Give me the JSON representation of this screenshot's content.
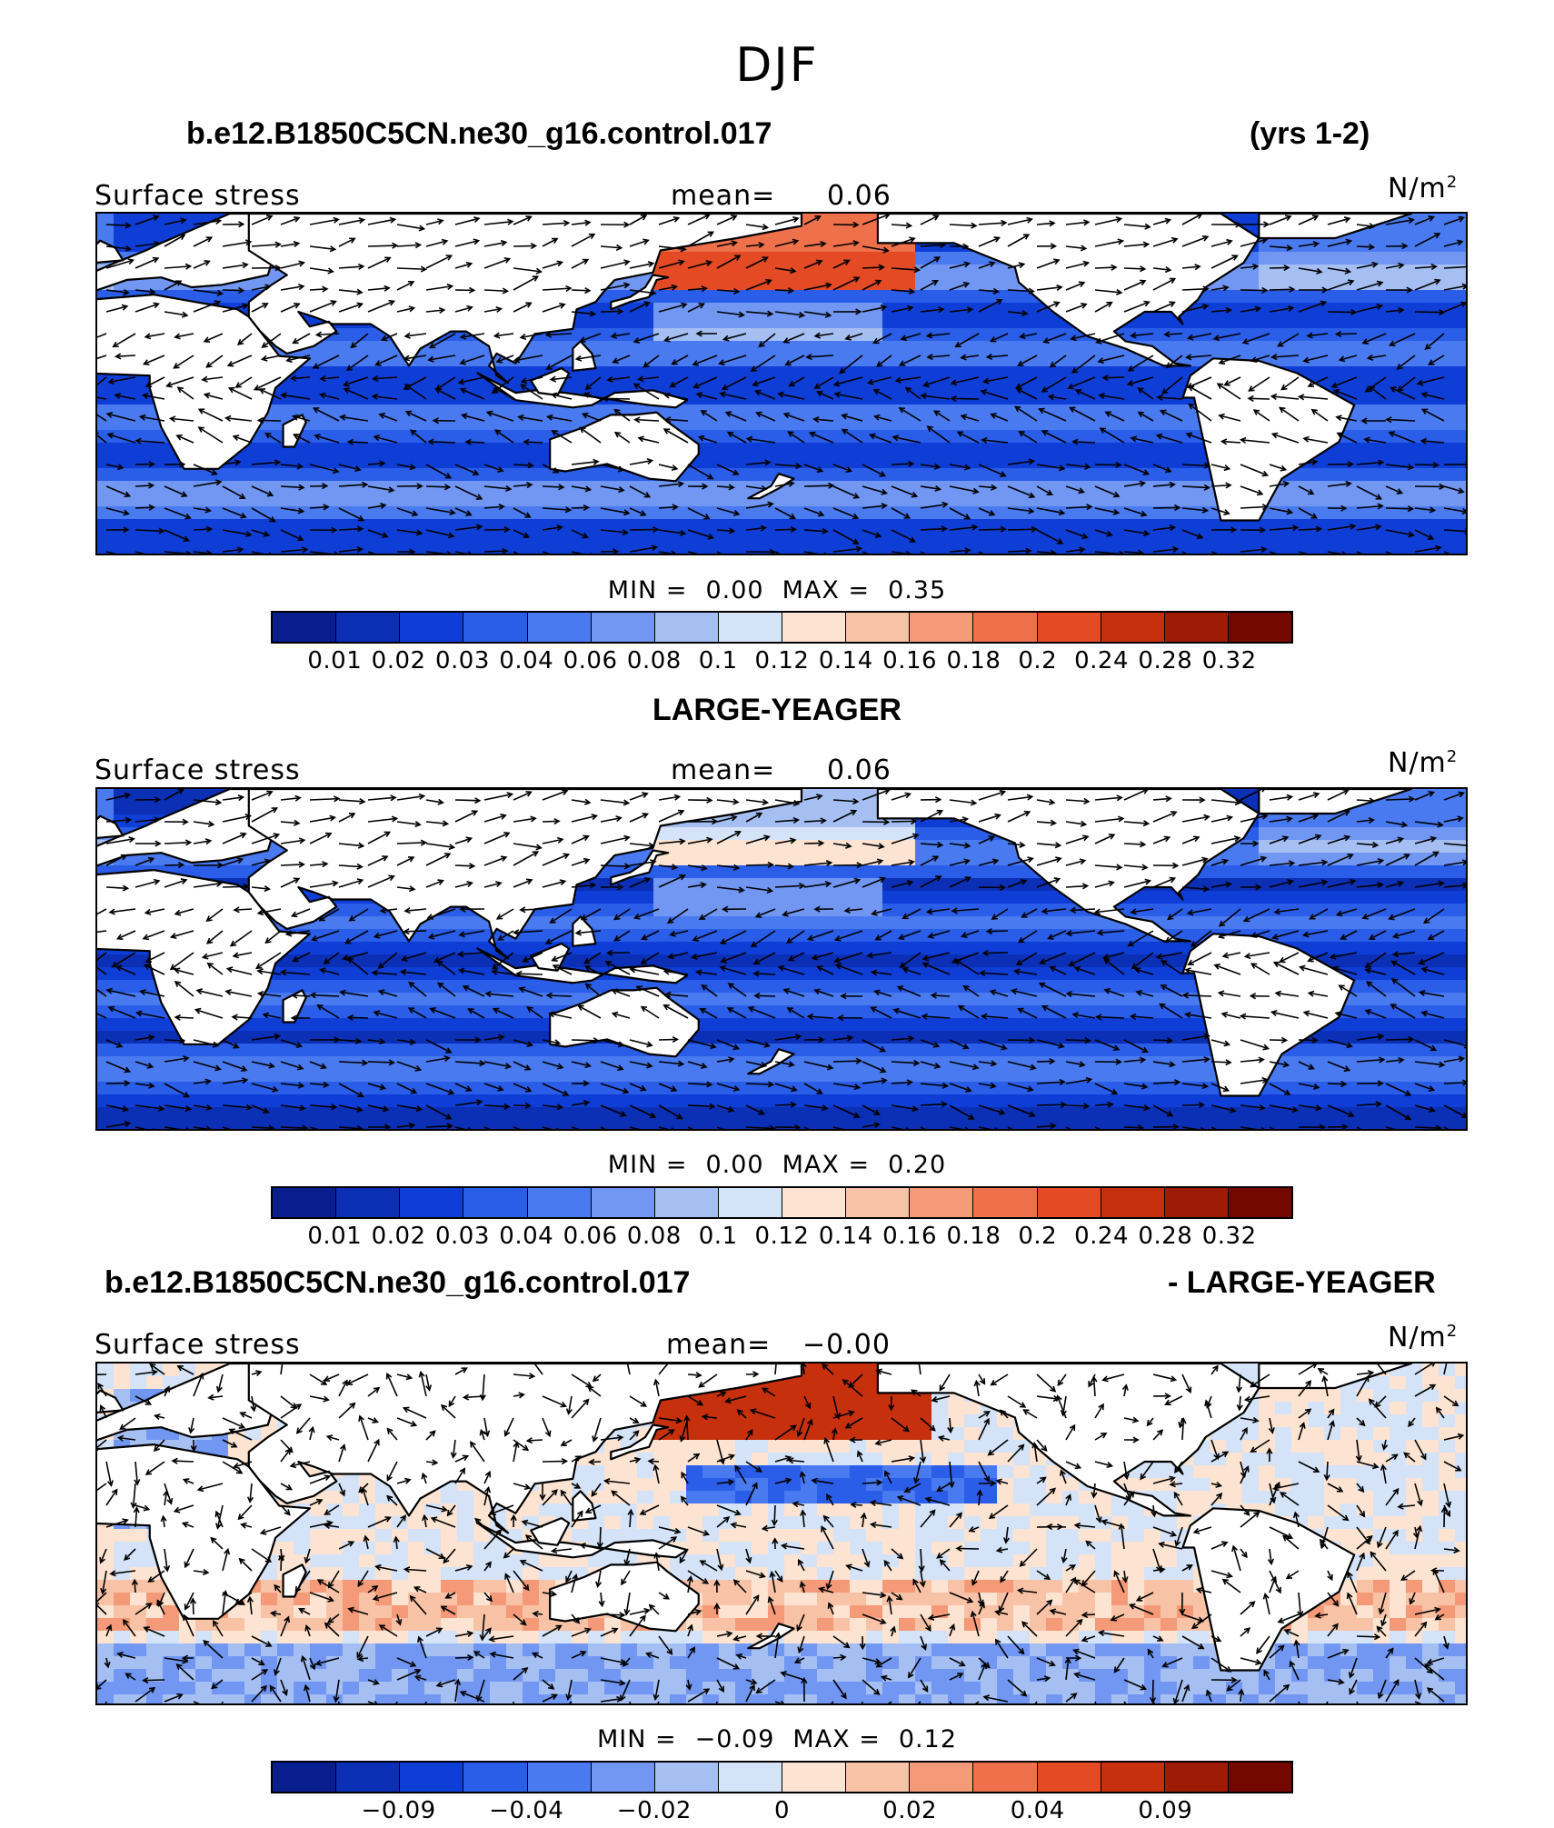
{
  "page": {
    "title": "DJF"
  },
  "panels": [
    {
      "heading_left": "b.e12.B1850C5CN.ne30_g16.control.017",
      "heading_right": "(yrs 1-2)",
      "variable": "Surface stress",
      "mean_label": "mean=",
      "mean_value": "0.06",
      "units": "N/m",
      "units_sup": "2",
      "min_label": "MIN =",
      "min_value": "0.00",
      "max_label": "MAX =",
      "max_value": "0.35",
      "colorbar_ticks": [
        "0.01",
        "0.02",
        "0.03",
        "0.04",
        "0.06",
        "0.08",
        "0.1",
        "0.12",
        "0.14",
        "0.16",
        "0.18",
        "0.2",
        "0.24",
        "0.28",
        "0.32"
      ]
    },
    {
      "heading_center": "LARGE-YEAGER",
      "variable": "Surface stress",
      "mean_label": "mean=",
      "mean_value": "0.06",
      "units": "N/m",
      "units_sup": "2",
      "min_label": "MIN =",
      "min_value": "0.00",
      "max_label": "MAX =",
      "max_value": "0.20",
      "colorbar_ticks": [
        "0.01",
        "0.02",
        "0.03",
        "0.04",
        "0.06",
        "0.08",
        "0.1",
        "0.12",
        "0.14",
        "0.16",
        "0.18",
        "0.2",
        "0.24",
        "0.28",
        "0.32"
      ]
    },
    {
      "heading_left": "b.e12.B1850C5CN.ne30_g16.control.017",
      "heading_right": "- LARGE-YEAGER",
      "variable": "Surface stress",
      "mean_label": "mean=",
      "mean_value": "−0.00",
      "units": "N/m",
      "units_sup": "2",
      "min_label": "MIN =",
      "min_value": "−0.09",
      "max_label": "MAX =",
      "max_value": "0.12",
      "colorbar_ticks": [
        "−0.09",
        "−0.04",
        "−0.02",
        "0",
        "0.02",
        "0.04",
        "0.09"
      ]
    }
  ],
  "colors": {
    "colorbar": [
      "#0a1f8f",
      "#0b2fb5",
      "#0e3ed6",
      "#2a5de8",
      "#4a7af0",
      "#7197f3",
      "#a5bff3",
      "#d4e3f7",
      "#fde3d1",
      "#f8c2a6",
      "#f59a78",
      "#ef714c",
      "#e44a24",
      "#c7300d",
      "#9e1c06",
      "#730800"
    ],
    "land": "#ffffff",
    "coast": "#000000"
  }
}
